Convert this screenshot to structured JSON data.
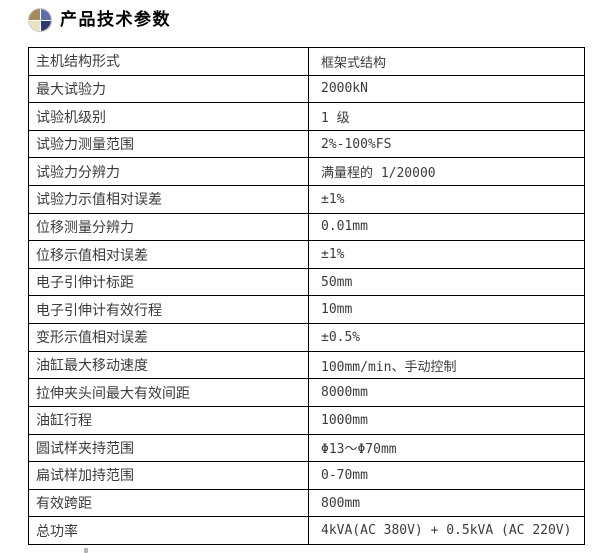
{
  "header": {
    "title": "产品技术参数",
    "icon": "sphere-quadrant-icon"
  },
  "colors": {
    "icon-tl": "#a58a5a",
    "icon-tr": "#5a71a8",
    "icon-bl": "#e9e3c2",
    "icon-br": "#2f3a6e",
    "table-border": "#000000",
    "text": "#3b3b3b"
  },
  "table": {
    "rows": [
      {
        "param": "主机结构形式",
        "value": "框架式结构"
      },
      {
        "param": "最大试验力",
        "value": "2000kN"
      },
      {
        "param": "试验机级别",
        "value": "1 级"
      },
      {
        "param": "试验力测量范围",
        "value": "2%-100%FS"
      },
      {
        "param": "试验力分辨力",
        "value": "满量程的 1/20000"
      },
      {
        "param": "试验力示值相对误差",
        "value": "±1%"
      },
      {
        "param": "位移测量分辨力",
        "value": "0.01mm"
      },
      {
        "param": "位移示值相对误差",
        "value": "±1%"
      },
      {
        "param": "电子引伸计标距",
        "value": "50mm"
      },
      {
        "param": "电子引伸计有效行程",
        "value": "10mm"
      },
      {
        "param": "变形示值相对误差",
        "value": "±0.5%"
      },
      {
        "param": "油缸最大移动速度",
        "value": "100mm/min、手动控制"
      },
      {
        "param": "拉伸夹头间最大有效间距",
        "value": "8000mm"
      },
      {
        "param": "油缸行程",
        "value": "1000mm"
      },
      {
        "param": "圆试样夹持范围",
        "value": "Φ13～Φ70mm"
      },
      {
        "param": "扁试样加持范围",
        "value": "0-70mm"
      },
      {
        "param": "有效跨距",
        "value": "800mm"
      },
      {
        "param": "总功率",
        "value": "4kVA(AC 380V) + 0.5kVA (AC 220V)"
      }
    ]
  }
}
